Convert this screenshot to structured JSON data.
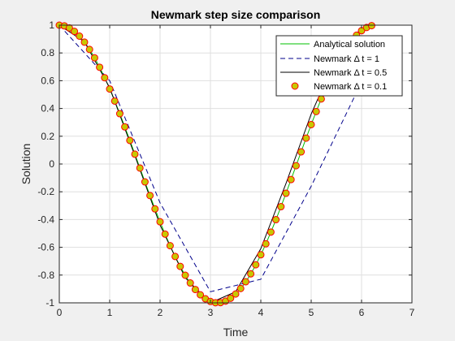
{
  "chart_data": {
    "type": "line",
    "title": "Newmark step size comparison",
    "xlabel": "Time",
    "ylabel": "Solution",
    "xlim": [
      0,
      7
    ],
    "ylim": [
      -1,
      1
    ],
    "xticks": [
      "0",
      "1",
      "2",
      "3",
      "4",
      "5",
      "6",
      "7"
    ],
    "yticks": [
      "-1",
      "-0.8",
      "-0.6",
      "-0.4",
      "-0.2",
      "0",
      "0.2",
      "0.4",
      "0.6",
      "0.8",
      "1"
    ],
    "grid": true,
    "legend_position": "top-right",
    "series": [
      {
        "name": "Analytical solution",
        "style": "solid",
        "color": "#00c000",
        "function": "cos(t)",
        "t_range": [
          0,
          6.2
        ]
      },
      {
        "name": "Newmark Δ t = 1",
        "style": "dashed",
        "color": "#00008b",
        "x": [
          0,
          1,
          2,
          3,
          4,
          5,
          6
        ],
        "y": [
          1,
          0.6,
          -0.28,
          -0.92,
          -0.83,
          -0.16,
          0.59
        ]
      },
      {
        "name": "Newmark Δ t = 0.5",
        "style": "solid",
        "color": "#000000",
        "x": [
          0,
          0.5,
          1,
          1.5,
          2,
          2.5,
          3,
          3.5,
          4,
          4.5,
          5,
          5.5,
          6
        ],
        "y": [
          1,
          0.88,
          0.55,
          0.06,
          -0.44,
          -0.82,
          -1.0,
          -0.92,
          -0.61,
          -0.14,
          0.36,
          0.77,
          0.98
        ]
      },
      {
        "name": "Newmark Δ t = 0.1",
        "style": "markers",
        "color": "#ff0000",
        "marker_fill": "#c8c800",
        "function": "cos(t)",
        "step": 0.1,
        "t_range": [
          0,
          6.2
        ]
      }
    ]
  }
}
